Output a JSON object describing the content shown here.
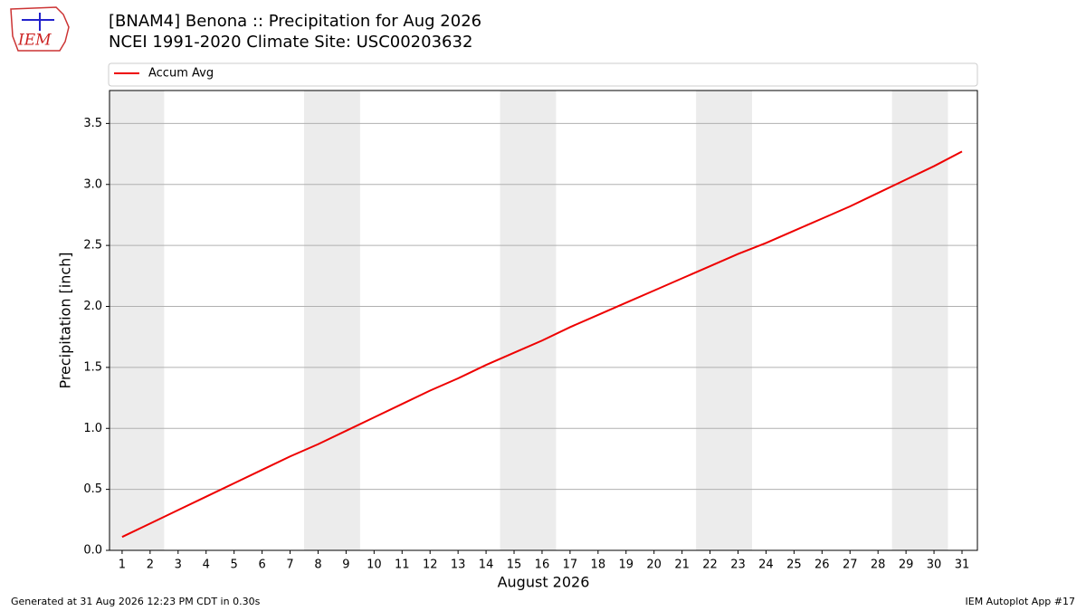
{
  "logo_text": "IEM",
  "footer_left": "Generated at 31 Aug 2026 12:23 PM CDT in 0.30s",
  "footer_right": "IEM Autoplot App #17",
  "chart_data": {
    "type": "line",
    "title": "[BNAM4] Benona :: Precipitation for Aug 2026",
    "subtitle": "NCEI 1991-2020 Climate Site: USC00203632",
    "xlabel": "August 2026",
    "ylabel": "Precipitation [inch]",
    "x": [
      1,
      2,
      3,
      4,
      5,
      6,
      7,
      8,
      9,
      10,
      11,
      12,
      13,
      14,
      15,
      16,
      17,
      18,
      19,
      20,
      21,
      22,
      23,
      24,
      25,
      26,
      27,
      28,
      29,
      30,
      31
    ],
    "series": [
      {
        "name": "Accum Avg",
        "color": "#ee0000",
        "values": [
          0.11,
          0.22,
          0.33,
          0.44,
          0.55,
          0.66,
          0.77,
          0.87,
          0.98,
          1.09,
          1.2,
          1.31,
          1.41,
          1.52,
          1.62,
          1.72,
          1.83,
          1.93,
          2.03,
          2.13,
          2.23,
          2.33,
          2.43,
          2.52,
          2.62,
          2.72,
          2.82,
          2.93,
          3.04,
          3.15,
          3.27
        ]
      }
    ],
    "xlim": [
      0.55,
      31.55
    ],
    "ylim": [
      0,
      3.77
    ],
    "xticks": [
      1,
      2,
      3,
      4,
      5,
      6,
      7,
      8,
      9,
      10,
      11,
      12,
      13,
      14,
      15,
      16,
      17,
      18,
      19,
      20,
      21,
      22,
      23,
      24,
      25,
      26,
      27,
      28,
      29,
      30,
      31
    ],
    "yticks": [
      {
        "value": 0,
        "label": "0.0"
      },
      0.5,
      {
        "value": 1,
        "label": "1.0"
      },
      1.5,
      {
        "value": 2,
        "label": "2.0"
      },
      2.5,
      {
        "value": 3,
        "label": "3.0"
      },
      3.5
    ],
    "grid": true,
    "shaded_spans": [
      [
        0.5,
        2.5
      ],
      [
        7.5,
        9.5
      ],
      [
        14.5,
        16.5
      ],
      [
        21.5,
        23.5
      ],
      [
        28.5,
        30.5
      ]
    ],
    "shade_color": "#ececec",
    "legend": "top"
  }
}
